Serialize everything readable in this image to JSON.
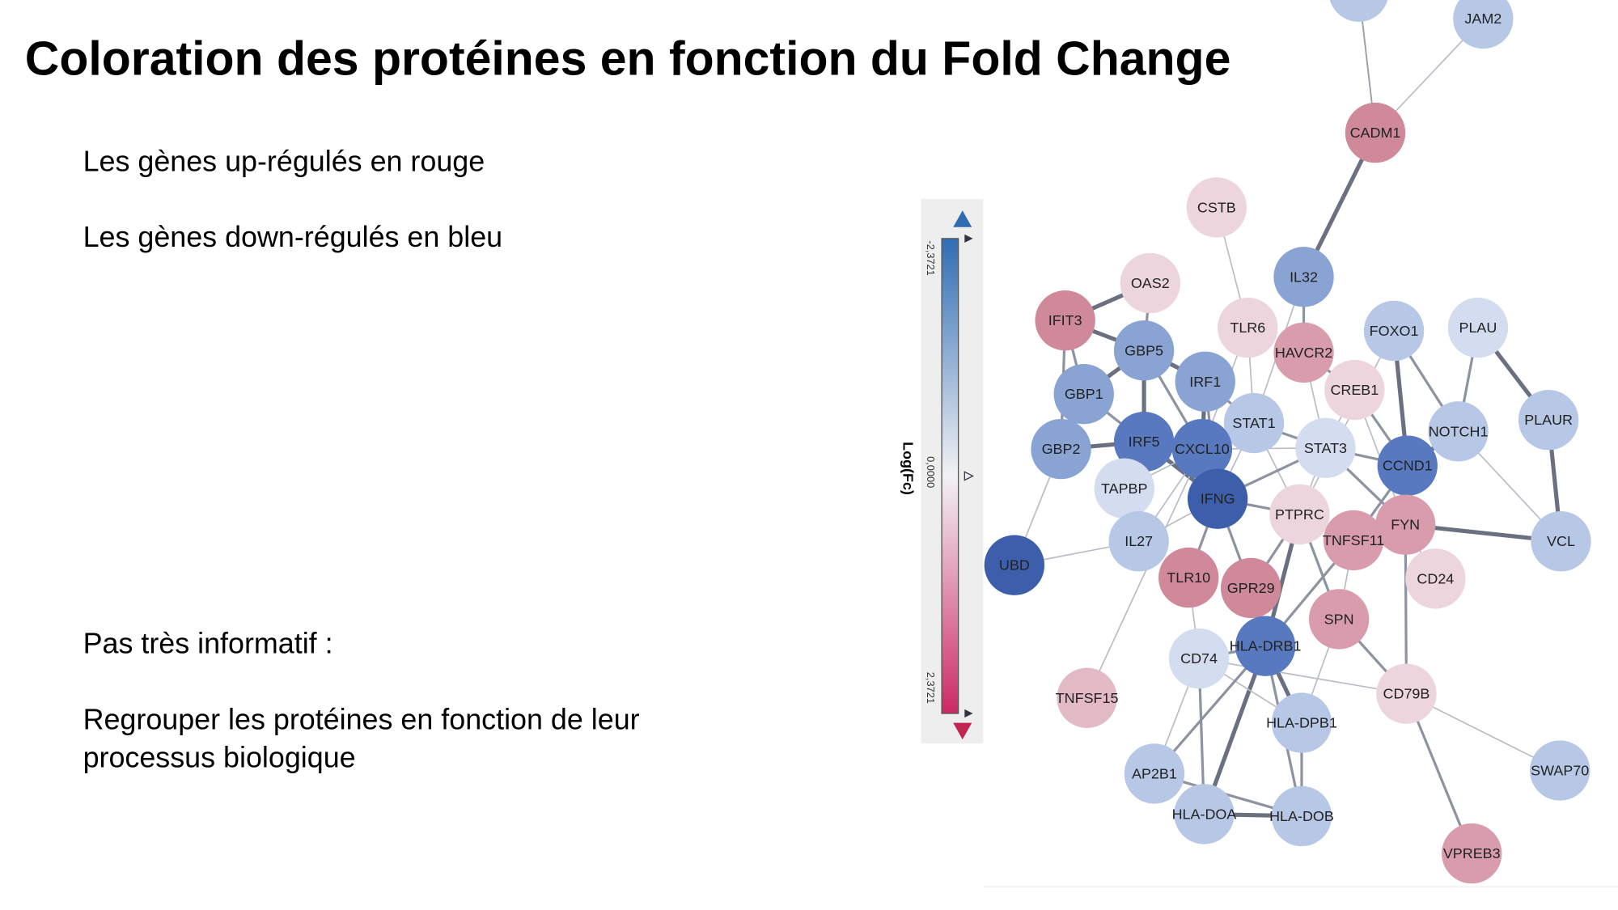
{
  "header": {
    "title": "Coloration des protéines en fonction du Fold Change"
  },
  "body": {
    "paragraphs": [
      [
        "Les gènes up-régulés en rouge"
      ],
      [
        "Les gènes down-régulés en bleu"
      ],
      [
        "Pas très informatif :"
      ],
      [
        "Regrouper les protéines en fonction de leur",
        "processus biologique"
      ]
    ]
  },
  "legend": {
    "title": "Log(Fc)",
    "ticks": [
      "-2,3721",
      "0,0000",
      "2,3721"
    ]
  },
  "network": {
    "nodes": [
      {
        "label": "JAM2"
      },
      {
        "label": "CADM1"
      },
      {
        "label": "CSTB"
      },
      {
        "label": "IL32"
      },
      {
        "label": "OAS2"
      },
      {
        "label": "IFIT3"
      },
      {
        "label": "TLR6"
      },
      {
        "label": "HAVCR2"
      },
      {
        "label": "FOXO1"
      },
      {
        "label": "PLAU"
      },
      {
        "label": "GBP5"
      },
      {
        "label": "IRF1"
      },
      {
        "label": "GBP1"
      },
      {
        "label": "CREB1"
      },
      {
        "label": "STAT1"
      },
      {
        "label": "PLAUR"
      },
      {
        "label": "NOTCH1"
      },
      {
        "label": "GBP2"
      },
      {
        "label": "IRF5"
      },
      {
        "label": "CXCL10"
      },
      {
        "label": "STAT3"
      },
      {
        "label": "CCND1"
      },
      {
        "label": "TAPBP"
      },
      {
        "label": "IFNG"
      },
      {
        "label": "PTPRC"
      },
      {
        "label": "FYN"
      },
      {
        "label": "TNFSF11"
      },
      {
        "label": "VCL"
      },
      {
        "label": "UBD"
      },
      {
        "label": "IL27"
      },
      {
        "label": "TLR10"
      },
      {
        "label": "GPR29"
      },
      {
        "label": "CD24"
      },
      {
        "label": "SPN"
      },
      {
        "label": "HLA-DRB1"
      },
      {
        "label": "CD74"
      },
      {
        "label": "TNFSF15"
      },
      {
        "label": "CD79B"
      },
      {
        "label": "HLA-DPB1"
      },
      {
        "label": "SWAP70"
      },
      {
        "label": "AP2B1"
      },
      {
        "label": "HLA-DOA"
      },
      {
        "label": "HLA-DOB"
      },
      {
        "label": "VPREB3"
      }
    ]
  }
}
